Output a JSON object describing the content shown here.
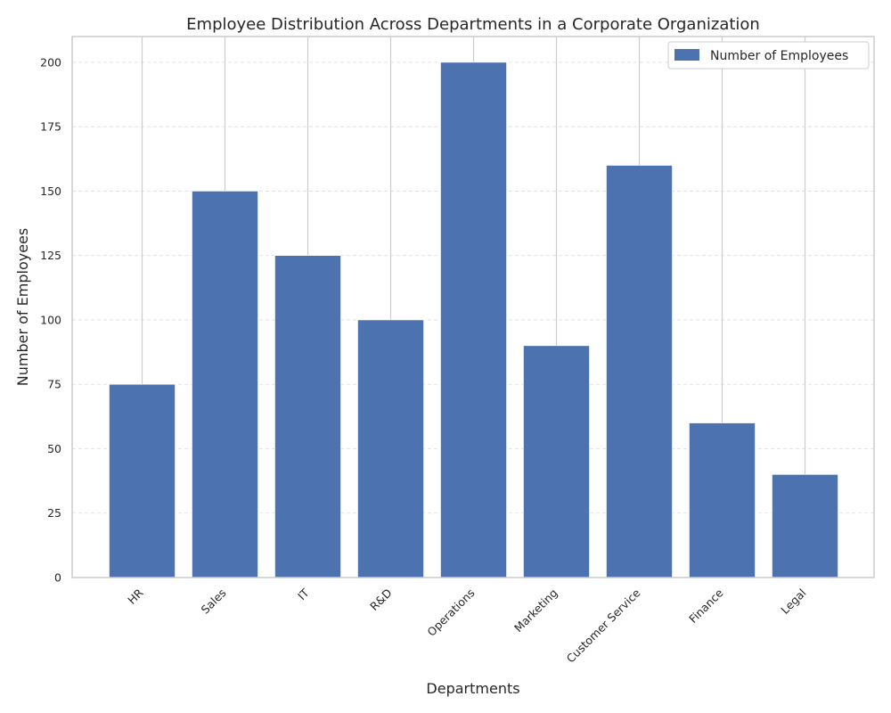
{
  "chart_data": {
    "type": "bar",
    "title": "Employee Distribution Across Departments in a Corporate Organization",
    "xlabel": "Departments",
    "ylabel": "Number of Employees",
    "categories": [
      "HR",
      "Sales",
      "IT",
      "R&D",
      "Operations",
      "Marketing",
      "Customer Service",
      "Finance",
      "Legal"
    ],
    "series": [
      {
        "name": "Number of Employees",
        "values": [
          75,
          150,
          125,
          100,
          200,
          90,
          160,
          60,
          40
        ],
        "color": "#4c72b0"
      }
    ],
    "yticks": [
      0,
      25,
      50,
      75,
      100,
      125,
      150,
      175,
      200
    ],
    "ylim": [
      0,
      210
    ],
    "grid": true,
    "legend_position": "top-right"
  }
}
